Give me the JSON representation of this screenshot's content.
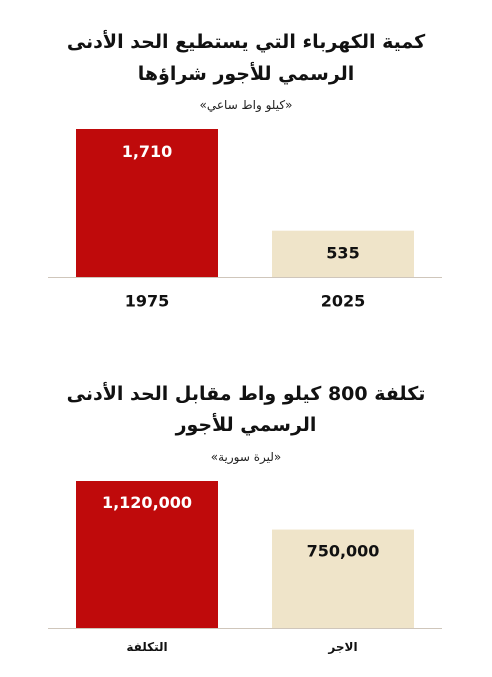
{
  "colors": {
    "primary": "#bf0a0b",
    "secondary": "#efe4c9",
    "axis": "#cfc6bb",
    "text_dark": "#111111",
    "text_light": "#ffffff"
  },
  "chart_data": [
    {
      "type": "bar",
      "title": "كمية الكهرباء التي يستطيع الحد الأدنى الرسمي للأجور شراؤها",
      "title_lines": [
        "كمية الكهرباء التي يستطيع الحد الأدنى",
        "الرسمي للأجور شراؤها"
      ],
      "subtitle": "«كيلو واط ساعي»",
      "categories": [
        "1975",
        "2025"
      ],
      "values": [
        1710,
        535
      ],
      "value_labels": [
        "1,710",
        "535"
      ],
      "bar_colors": [
        "#bf0a0b",
        "#efe4c9"
      ],
      "ylim": [
        0,
        1710
      ],
      "grid": false,
      "xlabel": "",
      "ylabel": ""
    },
    {
      "type": "bar",
      "title": "تكلفة 800 كيلو واط مقابل الحد الأدنى الرسمي للأجور",
      "title_lines": [
        "تكلفة 800 كيلو واط مقابل الحد الأدنى",
        "الرسمي للأجور"
      ],
      "subtitle": "«ليرة سورية»",
      "categories": [
        "التكلفة",
        "الاجر"
      ],
      "values": [
        1120000,
        750000
      ],
      "value_labels": [
        "1,120,000",
        "750,000"
      ],
      "bar_colors": [
        "#bf0a0b",
        "#efe4c9"
      ],
      "ylim": [
        0,
        1120000
      ],
      "grid": false,
      "xlabel": "",
      "ylabel": ""
    }
  ]
}
